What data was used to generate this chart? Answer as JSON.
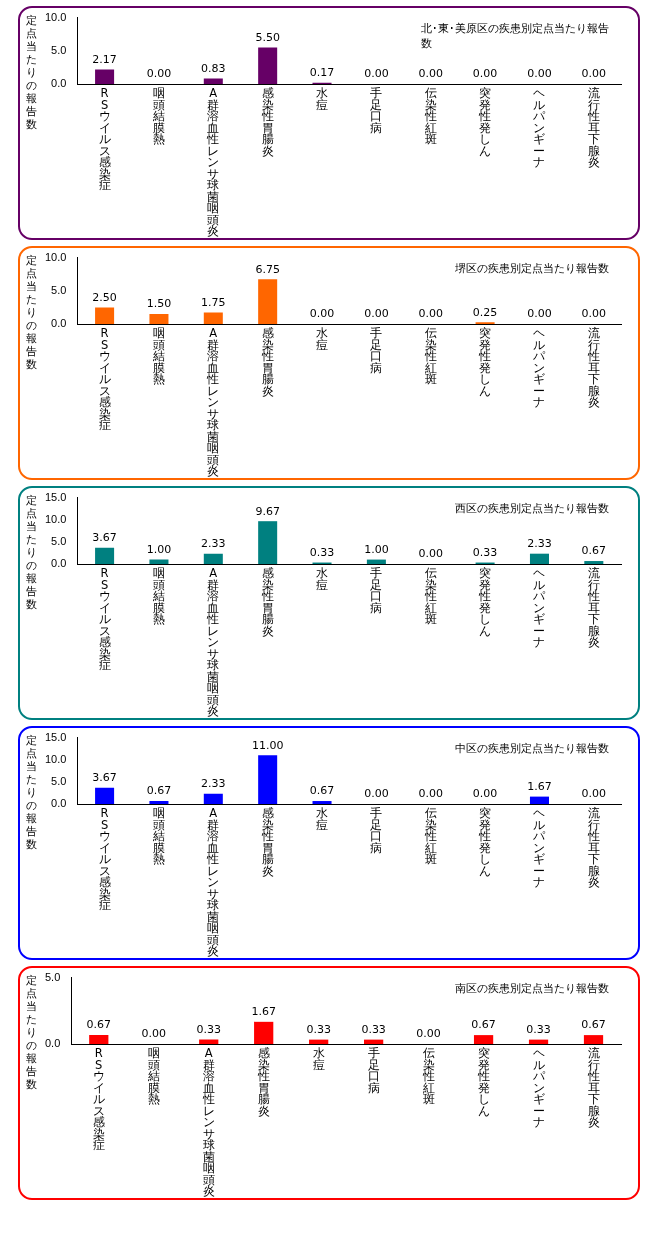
{
  "chart_data": [
    {
      "type": "bar",
      "title": "北･東･美原区の疾患別定点当たり報告数",
      "ylabel": "定点当たりの報告数",
      "categories": [
        "RSウイルス感染症",
        "咽頭結膜熱",
        "A群溶血性レンサ球菌咽頭炎",
        "感染性胃腸炎",
        "水痘",
        "手足口病",
        "伝染性紅斑",
        "突発性発しん",
        "ヘルパンギーナ",
        "流行性耳下腺炎"
      ],
      "color": "#660066",
      "values": [
        2.17,
        0,
        0.83,
        5.5,
        0.17,
        0,
        0,
        0,
        0,
        0
      ],
      "value_labels": [
        "2.17",
        "0.00",
        "0.83",
        "5.50",
        "0.17",
        "0.00",
        "0.00",
        "0.00",
        "0.00",
        "0.00"
      ],
      "ylim": [
        0,
        10
      ],
      "yticks": [
        {
          "value": 0,
          "label": "0.0"
        },
        {
          "value": 5,
          "label": "5.0"
        },
        {
          "value": 10,
          "label": "10.0"
        }
      ],
      "grid": false,
      "legend": false
    },
    {
      "type": "bar",
      "title": "堺区の疾患別定点当たり報告数",
      "ylabel": "定点当たりの報告数",
      "categories": [
        "RSウイルス感染症",
        "咽頭結膜熱",
        "A群溶血性レンサ球菌咽頭炎",
        "感染性胃腸炎",
        "水痘",
        "手足口病",
        "伝染性紅斑",
        "突発性発しん",
        "ヘルパンギーナ",
        "流行性耳下腺炎"
      ],
      "color": "#ff6600",
      "values": [
        2.5,
        1.5,
        1.75,
        6.75,
        0,
        0,
        0,
        0.25,
        0,
        0
      ],
      "value_labels": [
        "2.50",
        "1.50",
        "1.75",
        "6.75",
        "0.00",
        "0.00",
        "0.00",
        "0.25",
        "0.00",
        "0.00"
      ],
      "ylim": [
        0,
        10
      ],
      "yticks": [
        {
          "value": 0,
          "label": "0.0"
        },
        {
          "value": 5,
          "label": "5.0"
        },
        {
          "value": 10,
          "label": "10.0"
        }
      ],
      "grid": false,
      "legend": false
    },
    {
      "type": "bar",
      "title": "西区の疾患別定点当たり報告数",
      "ylabel": "定点当たりの報告数",
      "categories": [
        "RSウイルス感染症",
        "咽頭結膜熱",
        "A群溶血性レンサ球菌咽頭炎",
        "感染性胃腸炎",
        "水痘",
        "手足口病",
        "伝染性紅斑",
        "突発性発しん",
        "ヘルパンギーナ",
        "流行性耳下腺炎"
      ],
      "color": "#008080",
      "values": [
        3.67,
        1,
        2.33,
        9.67,
        0.33,
        1,
        0,
        0.33,
        2.33,
        0.67
      ],
      "value_labels": [
        "3.67",
        "1.00",
        "2.33",
        "9.67",
        "0.33",
        "1.00",
        "0.00",
        "0.33",
        "2.33",
        "0.67"
      ],
      "ylim": [
        0,
        15
      ],
      "yticks": [
        {
          "value": 0,
          "label": "0.0"
        },
        {
          "value": 5,
          "label": "5.0"
        },
        {
          "value": 10,
          "label": "10.0"
        },
        {
          "value": 15,
          "label": "15.0"
        }
      ],
      "grid": false,
      "legend": false
    },
    {
      "type": "bar",
      "title": "中区の疾患別定点当たり報告数",
      "ylabel": "定点当たりの報告数",
      "categories": [
        "RSウイルス感染症",
        "咽頭結膜熱",
        "A群溶血性レンサ球菌咽頭炎",
        "感染性胃腸炎",
        "水痘",
        "手足口病",
        "伝染性紅斑",
        "突発性発しん",
        "ヘルパンギーナ",
        "流行性耳下腺炎"
      ],
      "color": "#0000ff",
      "values": [
        3.67,
        0.67,
        2.33,
        11,
        0.67,
        0,
        0,
        0,
        1.67,
        0
      ],
      "value_labels": [
        "3.67",
        "0.67",
        "2.33",
        "11.00",
        "0.67",
        "0.00",
        "0.00",
        "0.00",
        "1.67",
        "0.00"
      ],
      "ylim": [
        0,
        15
      ],
      "yticks": [
        {
          "value": 0,
          "label": "0.0"
        },
        {
          "value": 5,
          "label": "5.0"
        },
        {
          "value": 10,
          "label": "10.0"
        },
        {
          "value": 15,
          "label": "15.0"
        }
      ],
      "grid": false,
      "legend": false
    },
    {
      "type": "bar",
      "title": "南区の疾患別定点当たり報告数",
      "ylabel": "定点当たりの報告数",
      "categories": [
        "RSウイルス感染症",
        "咽頭結膜熱",
        "A群溶血性レンサ球菌咽頭炎",
        "感染性胃腸炎",
        "水痘",
        "手足口病",
        "伝染性紅斑",
        "突発性発しん",
        "ヘルパンギーナ",
        "流行性耳下腺炎"
      ],
      "color": "#ff0000",
      "values": [
        0.67,
        0,
        0.33,
        1.67,
        0.33,
        0.33,
        0,
        0.67,
        0.33,
        0.67
      ],
      "value_labels": [
        "0.67",
        "0.00",
        "0.33",
        "1.67",
        "0.33",
        "0.33",
        "0.00",
        "0.67",
        "0.33",
        "0.67"
      ],
      "ylim": [
        0,
        5
      ],
      "yticks": [
        {
          "value": 0,
          "label": "0.0"
        },
        {
          "value": 5,
          "label": "5.0"
        }
      ],
      "grid": false,
      "legend": false
    }
  ]
}
